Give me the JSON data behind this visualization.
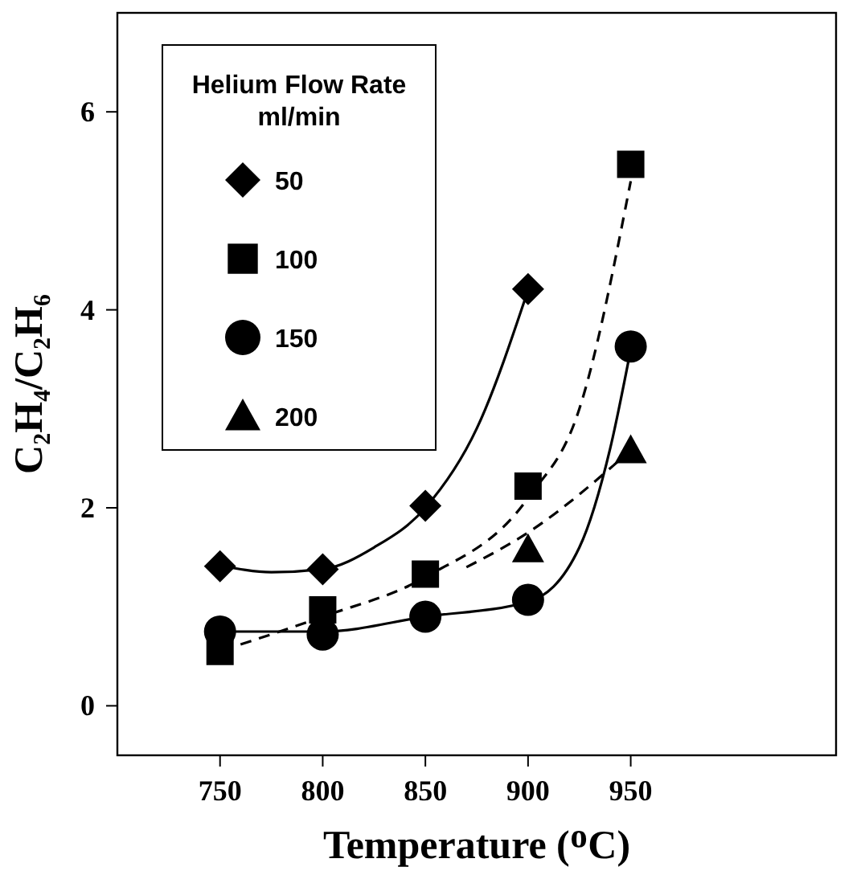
{
  "chart_data": {
    "type": "scatter",
    "xlabel": "Temperature (ᴼC)",
    "ylabel": "C₂H₄/C₂H₆",
    "legend_title": "Helium Flow Rate\nml/min",
    "legend": "top left",
    "xlim": [
      700,
      1050
    ],
    "ylim": [
      -0.5,
      7
    ],
    "xticks": [
      750,
      800,
      850,
      900,
      950
    ],
    "yticks": [
      0,
      2,
      4,
      6
    ],
    "grid": false,
    "series": [
      {
        "name": "50",
        "color": "#000000",
        "marker": "diamond",
        "x": [
          750,
          800,
          850,
          900
        ],
        "values": [
          1.41,
          1.38,
          2.02,
          4.21
        ]
      },
      {
        "name": "100",
        "color": "#000000",
        "marker": "square",
        "x": [
          750,
          800,
          850,
          900,
          950
        ],
        "values": [
          0.55,
          0.97,
          1.33,
          2.22,
          5.47
        ]
      },
      {
        "name": "150",
        "color": "#000000",
        "marker": "circle",
        "x": [
          750,
          800,
          850,
          900,
          950
        ],
        "values": [
          0.75,
          0.72,
          0.9,
          1.07,
          3.63
        ]
      },
      {
        "name": "200",
        "color": "#000000",
        "marker": "triangle",
        "x": [
          900,
          950
        ],
        "values": [
          1.58,
          2.58
        ]
      },
      {
        "type": "line",
        "color": "#000000",
        "line_style": "solid",
        "marker": "none",
        "x": [
          750,
          775,
          800,
          825,
          850,
          875,
          900
        ],
        "values": [
          1.42,
          1.35,
          1.38,
          1.6,
          2.0,
          2.8,
          4.2
        ]
      },
      {
        "type": "line",
        "color": "#000000",
        "line_style": "dashed",
        "marker": "none",
        "x": [
          760,
          800,
          850,
          900,
          925,
          950
        ],
        "values": [
          0.62,
          0.9,
          1.3,
          2.1,
          3.0,
          5.3
        ]
      },
      {
        "type": "line",
        "color": "#000000",
        "line_style": "solid",
        "marker": "none",
        "x": [
          750,
          800,
          850,
          900,
          925,
          940,
          950
        ],
        "values": [
          0.75,
          0.75,
          0.9,
          1.05,
          1.6,
          2.6,
          3.6
        ]
      },
      {
        "type": "line",
        "color": "#000000",
        "line_style": "dashed",
        "marker": "none",
        "x": [
          870,
          900,
          950
        ],
        "values": [
          1.4,
          1.75,
          2.58
        ]
      }
    ]
  }
}
